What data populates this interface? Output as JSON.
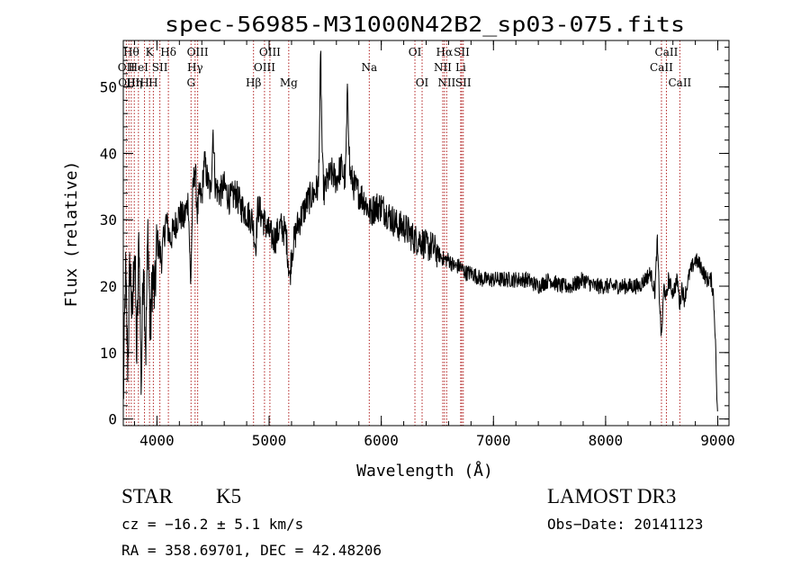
{
  "chart_data": {
    "type": "line",
    "title": "spec-56985-M31000N42B2_sp03-075.fits",
    "xlabel": "Wavelength (Å)",
    "ylabel": "Flux (relative)",
    "xlim": [
      3700,
      9100
    ],
    "ylim": [
      -1,
      57
    ],
    "x_ticks": [
      4000,
      5000,
      6000,
      7000,
      8000,
      9000
    ],
    "y_ticks": [
      0,
      10,
      20,
      30,
      40,
      50
    ],
    "x_minor_step": 200,
    "y_minor_step": 2,
    "line_color": "#000000",
    "marker_color": "#b22222",
    "series": [
      {
        "name": "flux",
        "x": [
          3700,
          3720,
          3740,
          3760,
          3780,
          3800,
          3820,
          3840,
          3860,
          3880,
          3900,
          3920,
          3940,
          3960,
          3980,
          4000,
          4040,
          4080,
          4120,
          4160,
          4200,
          4240,
          4280,
          4300,
          4320,
          4340,
          4360,
          4380,
          4400,
          4420,
          4450,
          4480,
          4500,
          4520,
          4560,
          4600,
          4650,
          4700,
          4750,
          4800,
          4850,
          4880,
          4900,
          4950,
          5000,
          5050,
          5100,
          5150,
          5170,
          5185,
          5200,
          5250,
          5300,
          5350,
          5400,
          5440,
          5460,
          5475,
          5490,
          5520,
          5560,
          5600,
          5640,
          5680,
          5700,
          5720,
          5760,
          5800,
          5850,
          5900,
          5950,
          6000,
          6050,
          6100,
          6150,
          6200,
          6250,
          6300,
          6350,
          6400,
          6450,
          6500,
          6560,
          6600,
          6650,
          6700,
          6750,
          6800,
          6900,
          7000,
          7100,
          7200,
          7300,
          7400,
          7500,
          7600,
          7700,
          7800,
          7900,
          8000,
          8100,
          8200,
          8300,
          8400,
          8440,
          8460,
          8480,
          8498,
          8520,
          8542,
          8560,
          8600,
          8640,
          8662,
          8680,
          8700,
          8750,
          8800,
          8850,
          8900,
          8940,
          8960,
          8980,
          8990,
          9000
        ],
        "y": [
          2,
          22,
          8,
          24,
          14,
          27,
          9,
          28,
          5,
          25,
          10,
          29,
          12,
          22,
          18,
          27,
          24,
          30,
          27,
          29,
          31,
          30,
          33,
          20,
          34,
          38,
          31,
          34,
          33,
          39,
          36,
          34,
          44,
          35,
          34,
          35,
          33,
          34,
          32,
          31,
          30,
          26,
          32,
          30,
          28,
          27,
          29,
          28,
          24,
          21,
          25,
          29,
          31,
          33,
          34,
          35,
          55,
          38,
          34,
          36,
          37,
          36,
          38,
          36,
          50,
          37,
          35,
          34,
          33,
          31,
          32,
          32,
          31,
          30,
          29,
          29,
          28,
          27,
          27,
          26,
          26,
          25,
          24,
          24,
          23,
          23,
          22,
          22,
          21,
          21,
          21,
          21,
          21,
          20,
          21,
          20,
          20,
          21,
          20,
          20,
          20,
          20,
          20,
          22,
          19,
          27,
          18,
          12,
          20,
          18,
          21,
          19,
          21,
          17,
          20,
          18,
          22,
          24,
          23,
          21,
          21,
          19,
          12,
          4,
          0
        ]
      }
    ],
    "line_markers": [
      {
        "x": 3727,
        "label": "OII",
        "row": 1
      },
      {
        "x": 3750,
        "label": "OIII",
        "row": 2
      },
      {
        "x": 3771,
        "label": "Hθ",
        "row": 0
      },
      {
        "x": 3798,
        "label": "Hη",
        "row": 2
      },
      {
        "x": 3835,
        "label": "HeI",
        "row": 1
      },
      {
        "x": 3889,
        "label": "H",
        "row": 2
      },
      {
        "x": 3934,
        "label": "K",
        "row": 0
      },
      {
        "x": 3968,
        "label": "H",
        "row": 2
      },
      {
        "x": 4026,
        "label": "SII",
        "row": 1
      },
      {
        "x": 4102,
        "label": "Hδ",
        "row": 0
      },
      {
        "x": 4304,
        "label": "G",
        "row": 2
      },
      {
        "x": 4340,
        "label": "Hγ",
        "row": 1
      },
      {
        "x": 4363,
        "label": "OIII",
        "row": 0
      },
      {
        "x": 4861,
        "label": "Hβ",
        "row": 2
      },
      {
        "x": 4959,
        "label": "OIII",
        "row": 1
      },
      {
        "x": 5007,
        "label": "OIII",
        "row": 0
      },
      {
        "x": 5175,
        "label": "Mg",
        "row": 2
      },
      {
        "x": 5893,
        "label": "Na",
        "row": 1
      },
      {
        "x": 6300,
        "label": "OI",
        "row": 0
      },
      {
        "x": 6364,
        "label": "OI",
        "row": 2
      },
      {
        "x": 6548,
        "label": "NII",
        "row": 1
      },
      {
        "x": 6563,
        "label": "Hα",
        "row": 0
      },
      {
        "x": 6583,
        "label": "NII",
        "row": 2
      },
      {
        "x": 6708,
        "label": "Li",
        "row": 1
      },
      {
        "x": 6717,
        "label": "SII",
        "row": 0
      },
      {
        "x": 6731,
        "label": "SII",
        "row": 2
      },
      {
        "x": 8498,
        "label": "CaII",
        "row": 1
      },
      {
        "x": 8542,
        "label": "CaII",
        "row": 0
      },
      {
        "x": 8662,
        "label": "CaII",
        "row": 2
      }
    ]
  },
  "info": {
    "object_class": "STAR",
    "subclass": "K5",
    "survey": "LAMOST DR3",
    "redshift": "cz = −16.2 ± 5.1 km/s",
    "obs_date": "Obs−Date: 20141123",
    "coords": "RA = 358.69701, DEC =  42.48206"
  }
}
